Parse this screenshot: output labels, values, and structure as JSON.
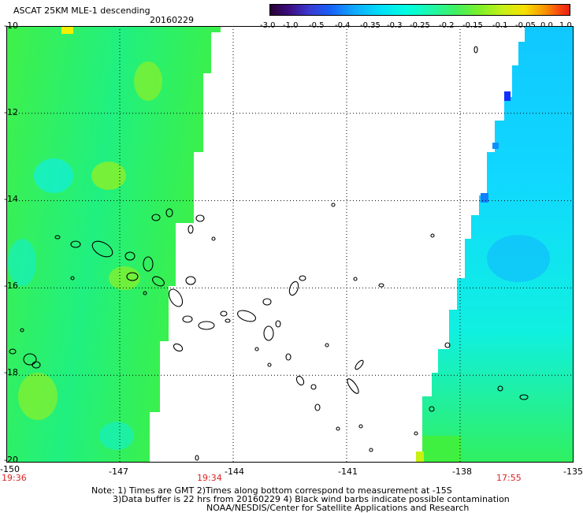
{
  "header": {
    "title": "ASCAT 25KM MLE-1 descending",
    "date": "20160229"
  },
  "colorbar": {
    "labels": [
      "-3.0",
      "-1.0",
      "-0.5",
      "-0.4",
      "-0.35",
      "-0.3",
      "-0.25",
      "-0.2",
      "-0.15",
      "-0.1",
      "-0.05",
      "0.0",
      "1.0"
    ]
  },
  "axes": {
    "x_ticks": [
      "-150",
      "-147",
      "-144",
      "-141",
      "-138",
      "-135"
    ],
    "y_ticks": [
      "-10",
      "-12",
      "-14",
      "-16",
      "-18",
      "-20"
    ]
  },
  "pass_times": [
    "19:36",
    "19:34",
    "17:55"
  ],
  "footer": {
    "line1": "Note: 1) Times are GMT 2)Times along bottom correspond to measurement at -15S",
    "line2": "3)Data buffer is 22 hrs from 20160229 4) Black wind barbs indicate possible contamination",
    "line3": "NOAA/NESDIS/Center for Satellite Applications and Research"
  },
  "colors": {
    "green": "#30f050",
    "yellow_green": "#8cf028",
    "cyan": "#10f0f0",
    "light_blue": "#10d0ff",
    "blue": "#1050ff",
    "coastline": "#000000"
  }
}
